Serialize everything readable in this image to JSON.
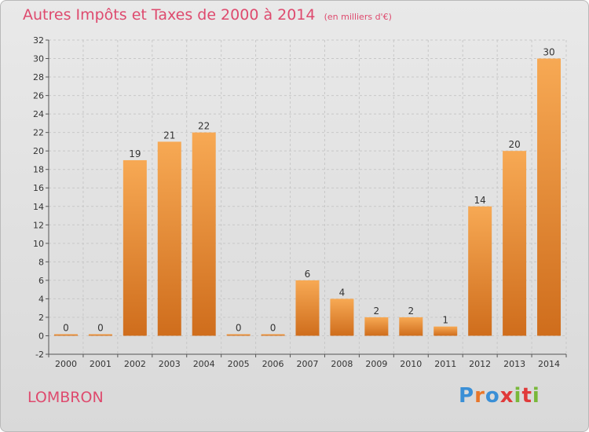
{
  "header": {
    "title": "Autres Impôts et Taxes de 2000 à 2014",
    "subtitle": "(en milliers d'€)"
  },
  "footer": {
    "commune": "LOMBRON",
    "logo_text": "Proxiti",
    "logo_colors": [
      "#3a8fd6",
      "#e8762a",
      "#3a8fd6",
      "#e03a3a",
      "#79b83a",
      "#e03a3a",
      "#79b83a"
    ]
  },
  "colors": {
    "title": "#de4a6e",
    "bar_light": "#f7a954",
    "bar_dark": "#cf6d1c",
    "grid": "#c8c8c8"
  },
  "chart_data": {
    "type": "bar",
    "title": "Autres Impôts et Taxes de 2000 à 2014",
    "subtitle": "(en milliers d'€)",
    "categories": [
      "2000",
      "2001",
      "2002",
      "2003",
      "2004",
      "2005",
      "2006",
      "2007",
      "2008",
      "2009",
      "2010",
      "2011",
      "2012",
      "2013",
      "2014"
    ],
    "values": [
      0,
      0,
      19,
      21,
      22,
      0,
      0,
      6,
      4,
      2,
      2,
      1,
      14,
      20,
      30
    ],
    "ylim": [
      -2,
      32
    ],
    "yticks": [
      -2,
      0,
      2,
      4,
      6,
      8,
      10,
      12,
      14,
      16,
      18,
      20,
      22,
      24,
      26,
      28,
      30,
      32
    ],
    "grid": true,
    "data_labels": true
  }
}
